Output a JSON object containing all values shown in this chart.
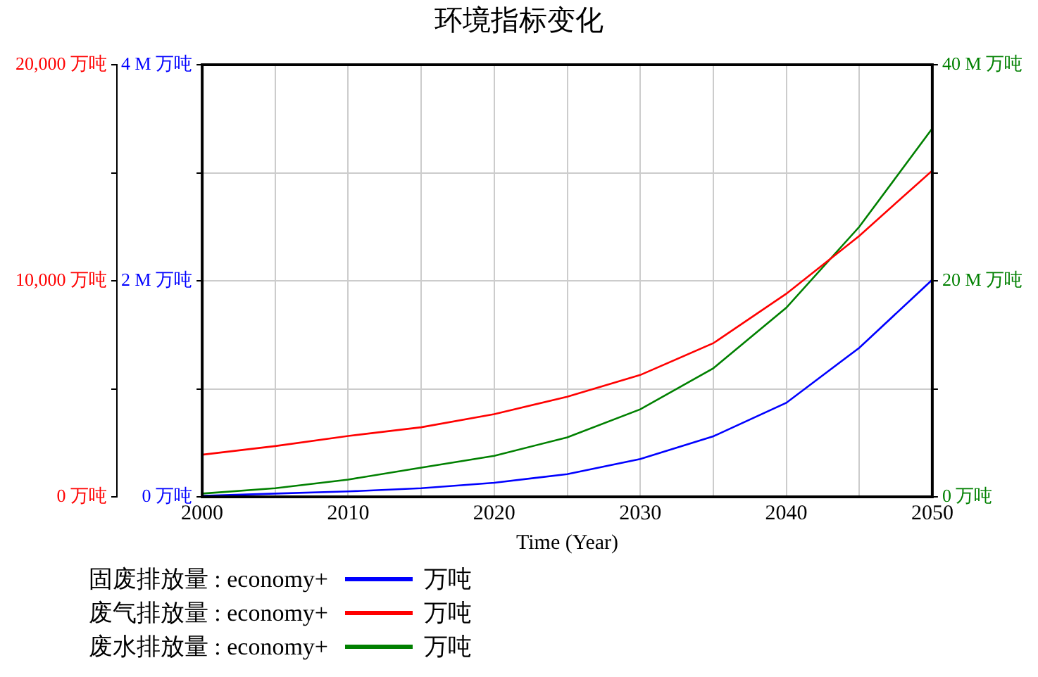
{
  "chart_data": {
    "type": "line",
    "title": "环境指标变化",
    "xlabel": "Time (Year)",
    "x": [
      2000,
      2005,
      2010,
      2015,
      2020,
      2025,
      2030,
      2035,
      2040,
      2045,
      2050
    ],
    "xlim": [
      2000,
      2050
    ],
    "xticks": [
      2000,
      {
        "value": 2005,
        "label": null
      },
      2010,
      {
        "value": 2015,
        "label": null
      },
      2020,
      {
        "value": 2025,
        "label": null
      },
      2030,
      {
        "value": 2035,
        "label": null
      },
      2040,
      {
        "value": 2045,
        "label": null
      },
      2050
    ],
    "ylim": [
      0,
      4000000
    ],
    "yticks": [
      {
        "value": 0,
        "label": "0 万吨"
      },
      {
        "value": 1000000,
        "label": null
      },
      {
        "value": 2000000,
        "label": "2 M 万吨"
      },
      {
        "value": 3000000,
        "label": null
      },
      {
        "value": 4000000,
        "label": "4 M 万吨"
      }
    ],
    "y2lim": [
      0,
      20000
    ],
    "y2ticks": [
      {
        "value": 0,
        "label": "0 万吨"
      },
      {
        "value": 5000,
        "label": null
      },
      {
        "value": 10000,
        "label": "10,000 万吨"
      },
      {
        "value": 15000,
        "label": null
      },
      {
        "value": 20000,
        "label": "20,000 万吨"
      }
    ],
    "y3lim": [
      0,
      40000000
    ],
    "y3ticks": [
      {
        "value": 0,
        "label": "0 万吨"
      },
      {
        "value": 10000000,
        "label": null
      },
      {
        "value": 20000000,
        "label": "20 M 万吨"
      },
      {
        "value": 30000000,
        "label": null
      },
      {
        "value": 40000000,
        "label": "40 M 万吨"
      }
    ],
    "grid": true,
    "legend": "bottom",
    "annotations": [
      "万吨",
      "万吨",
      "万吨"
    ],
    "series": [
      {
        "name": "固废排放量 : economy+",
        "color": "#0000ff",
        "values": [
          10000,
          30000,
          50000,
          80000,
          130000,
          210000,
          350000,
          560000,
          870000,
          1380000,
          2010000
        ]
      },
      {
        "name": "废气排放量 : economy+",
        "color": "#ff0000",
        "axis": "y2",
        "values": [
          1950,
          2350,
          2820,
          3220,
          3830,
          4630,
          5640,
          7110,
          9400,
          12080,
          15100
        ]
      },
      {
        "name": "废水排放量 : economy+",
        "color": "#008000",
        "axis": "y3",
        "values": [
          300000,
          800000,
          1600000,
          2700000,
          3800000,
          5500000,
          8100000,
          11900000,
          17500000,
          25000000,
          34100000
        ]
      }
    ]
  }
}
